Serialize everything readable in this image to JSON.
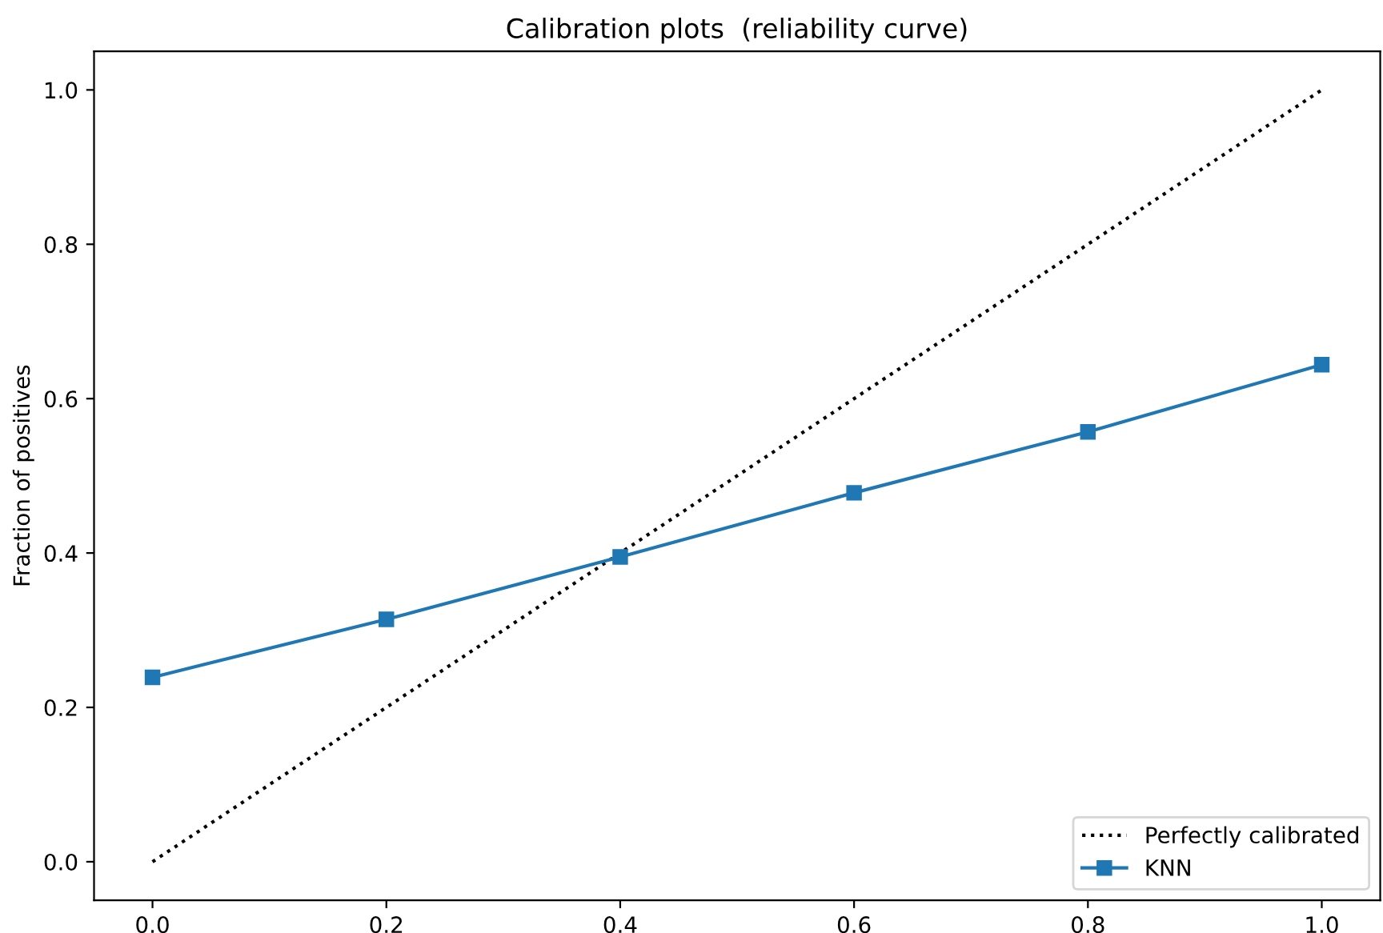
{
  "chart_data": {
    "type": "line",
    "title": "Calibration plots  (reliability curve)",
    "ylabel": "Fraction of positives",
    "xlim": [
      -0.05,
      1.05
    ],
    "ylim": [
      -0.05,
      1.05
    ],
    "xticks": [
      {
        "value": 0,
        "label": "0.0"
      },
      0.2,
      0.4,
      0.6,
      0.8,
      {
        "value": 1,
        "label": "1.0"
      }
    ],
    "yticks": [
      {
        "value": 0,
        "label": "0.0"
      },
      0.2,
      0.4,
      0.6,
      0.8,
      {
        "value": 1,
        "label": "1.0"
      }
    ],
    "series": [
      {
        "name": "Perfectly calibrated",
        "color": "#000000",
        "x": [
          0,
          1
        ],
        "values": [
          0,
          1
        ],
        "line_style": "dotted",
        "marker": "none"
      },
      {
        "name": "KNN",
        "color": "#1f77b4",
        "x": [
          0,
          0.2,
          0.4,
          0.6,
          0.8,
          1.0
        ],
        "values": [
          0.239,
          0.314,
          0.395,
          0.478,
          0.557,
          0.644
        ],
        "line_style": "solid",
        "marker": "square"
      }
    ],
    "legend": "bottom right",
    "grid": false
  }
}
